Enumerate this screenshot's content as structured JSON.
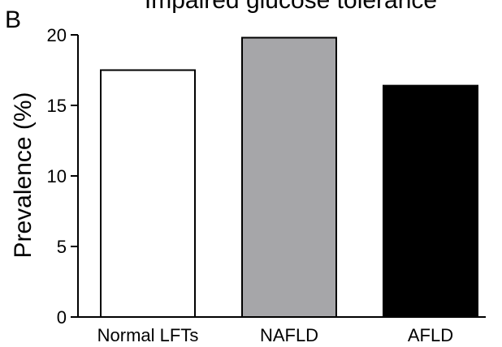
{
  "panel_label": "B",
  "chart_data": {
    "type": "bar",
    "title": "Impaired glucose tolerance",
    "xlabel": "",
    "ylabel": "Prevalence (%)",
    "categories": [
      "Normal LFTs",
      "NAFLD",
      "AFLD"
    ],
    "values": [
      17.5,
      19.8,
      16.4
    ],
    "bar_colors": [
      "#ffffff",
      "#a6a6a9",
      "#000000"
    ],
    "ylim": [
      0,
      20
    ],
    "yticks": [
      0,
      5,
      10,
      15,
      20
    ],
    "grid": false,
    "legend": "none"
  }
}
